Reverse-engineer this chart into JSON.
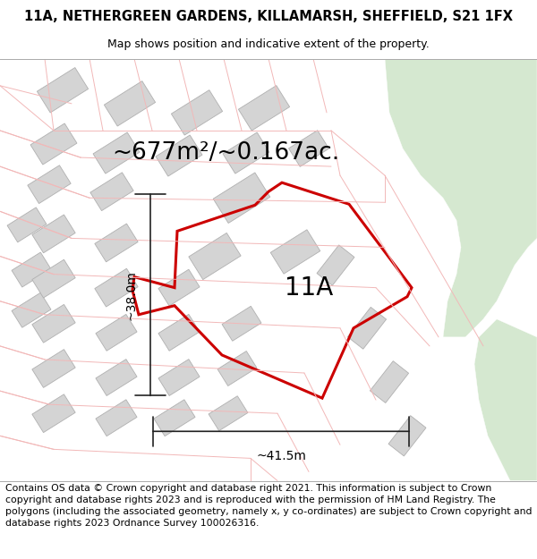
{
  "title_line1": "11A, NETHERGREEN GARDENS, KILLAMARSH, SHEFFIELD, S21 1FX",
  "title_line2": "Map shows position and indicative extent of the property.",
  "area_label": "~677m²/~0.167ac.",
  "plot_label": "11A",
  "dim_vertical": "~38.0m",
  "dim_horizontal": "~41.5m",
  "footer_text": "Contains OS data © Crown copyright and database right 2021. This information is subject to Crown copyright and database rights 2023 and is reproduced with the permission of HM Land Registry. The polygons (including the associated geometry, namely x, y co-ordinates) are subject to Crown copyright and database rights 2023 Ordnance Survey 100026316.",
  "bg_color": "#ffffff",
  "map_bg": "#f0eded",
  "green_color": "#d5e8d0",
  "building_fill": "#d4d4d4",
  "building_edge": "#b0b0b0",
  "road_color": "#f2b8b8",
  "red_color": "#cc0000",
  "dim_color": "#222222",
  "title_fs": 10.5,
  "subtitle_fs": 9,
  "area_fs": 19,
  "label_fs": 20,
  "dim_fs": 10,
  "footer_fs": 7.8
}
